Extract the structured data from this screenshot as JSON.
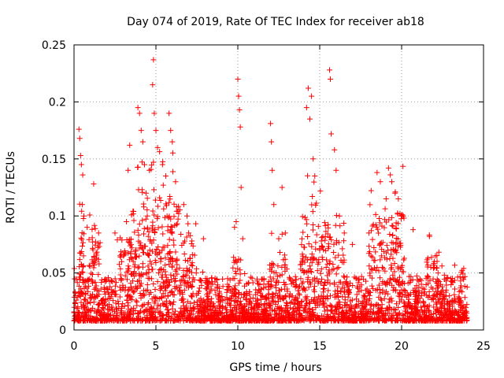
{
  "chart_data": {
    "type": "scatter",
    "title": "Day 074 of 2019, Rate Of TEC Index for receiver ab18",
    "xlabel": "GPS time / hours",
    "ylabel": "ROTI / TECUs",
    "xlim": [
      0,
      25
    ],
    "ylim": [
      0,
      0.25
    ],
    "x_ticks": [
      0,
      5,
      10,
      15,
      20,
      25
    ],
    "y_ticks": [
      0,
      0.05,
      0.1,
      0.15,
      0.2,
      0.25
    ],
    "x_tick_labels": [
      "0",
      "5",
      "10",
      "15",
      "20",
      "25"
    ],
    "y_tick_labels": [
      "0",
      "0.05",
      "0.1",
      "0.15",
      "0.2",
      "0.25"
    ],
    "grid": true,
    "marker": "plus",
    "color": "#ff0000",
    "data_range_x": [
      0,
      24
    ],
    "series": [
      {
        "name": "ROTI",
        "points": [
          [
            0.3,
            0.176
          ],
          [
            0.35,
            0.168
          ],
          [
            0.4,
            0.153
          ],
          [
            0.45,
            0.145
          ],
          [
            0.5,
            0.11
          ],
          [
            0.6,
            0.1
          ],
          [
            0.8,
            0.09
          ],
          [
            1.2,
            0.128
          ],
          [
            1.5,
            0.085
          ],
          [
            2.5,
            0.085
          ],
          [
            3.2,
            0.095
          ],
          [
            3.3,
            0.14
          ],
          [
            3.4,
            0.162
          ],
          [
            3.9,
            0.195
          ],
          [
            4.0,
            0.19
          ],
          [
            4.1,
            0.175
          ],
          [
            4.2,
            0.165
          ],
          [
            4.3,
            0.145
          ],
          [
            4.4,
            0.12
          ],
          [
            4.6,
            0.14
          ],
          [
            4.8,
            0.215
          ],
          [
            4.85,
            0.237
          ],
          [
            4.9,
            0.19
          ],
          [
            5.0,
            0.175
          ],
          [
            5.1,
            0.16
          ],
          [
            5.4,
            0.145
          ],
          [
            5.6,
            0.135
          ],
          [
            5.8,
            0.19
          ],
          [
            5.9,
            0.175
          ],
          [
            6.0,
            0.165
          ],
          [
            6.2,
            0.13
          ],
          [
            6.7,
            0.11
          ],
          [
            6.9,
            0.1
          ],
          [
            7.0,
            0.085
          ],
          [
            7.9,
            0.08
          ],
          [
            9.8,
            0.09
          ],
          [
            9.9,
            0.095
          ],
          [
            10.0,
            0.22
          ],
          [
            10.05,
            0.205
          ],
          [
            10.1,
            0.193
          ],
          [
            10.15,
            0.178
          ],
          [
            10.2,
            0.125
          ],
          [
            10.3,
            0.08
          ],
          [
            12.0,
            0.181
          ],
          [
            12.05,
            0.165
          ],
          [
            12.1,
            0.14
          ],
          [
            12.2,
            0.11
          ],
          [
            12.5,
            0.08
          ],
          [
            12.7,
            0.125
          ],
          [
            12.9,
            0.085
          ],
          [
            14.2,
            0.195
          ],
          [
            14.3,
            0.212
          ],
          [
            14.4,
            0.185
          ],
          [
            14.5,
            0.205
          ],
          [
            14.6,
            0.15
          ],
          [
            14.7,
            0.135
          ],
          [
            15.6,
            0.228
          ],
          [
            15.65,
            0.22
          ],
          [
            15.7,
            0.172
          ],
          [
            15.9,
            0.158
          ],
          [
            16.0,
            0.14
          ],
          [
            16.2,
            0.1
          ],
          [
            16.5,
            0.085
          ],
          [
            17.0,
            0.075
          ],
          [
            18.0,
            0.085
          ],
          [
            18.5,
            0.138
          ],
          [
            18.7,
            0.13
          ],
          [
            19.2,
            0.142
          ],
          [
            19.4,
            0.13
          ],
          [
            19.6,
            0.12
          ],
          [
            19.8,
            0.115
          ],
          [
            20.0,
            0.1
          ],
          [
            20.7,
            0.088
          ],
          [
            21.7,
            0.082
          ],
          [
            22.0,
            0.06
          ],
          [
            23.0,
            0.045
          ],
          [
            23.6,
            0.043
          ]
        ]
      }
    ]
  }
}
